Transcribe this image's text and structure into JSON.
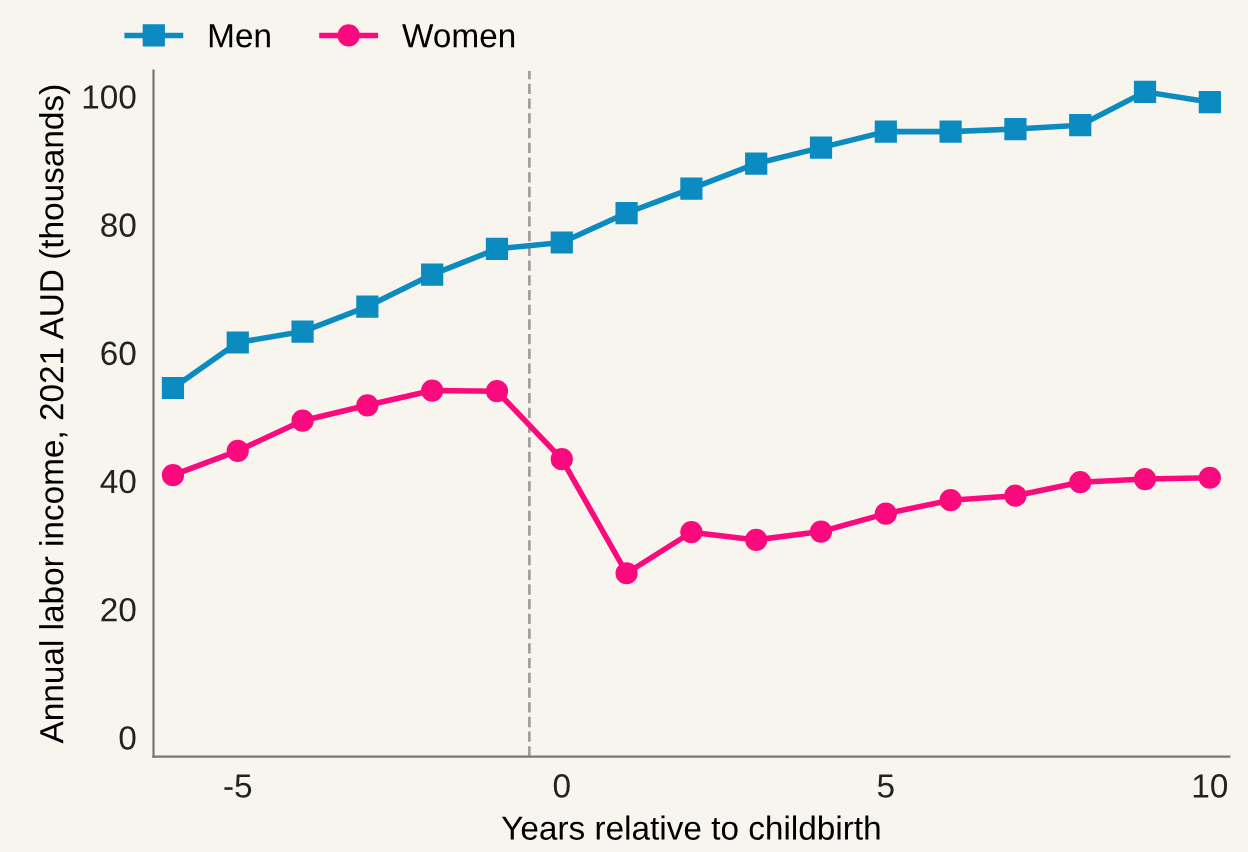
{
  "chart_data": {
    "type": "line",
    "xlabel": "Years relative to childbirth",
    "ylabel": "Annual labor income, 2021 AUD (thousands)",
    "x": [
      -6,
      -5,
      -4,
      -3,
      -2,
      -1,
      0,
      1,
      2,
      3,
      4,
      5,
      6,
      7,
      8,
      9,
      10
    ],
    "series": [
      {
        "name": "Men",
        "color": "#0b8bbf",
        "marker": "square",
        "values": [
          54.5,
          61.6,
          63.3,
          67.2,
          72.2,
          76.2,
          77.2,
          81.8,
          85.6,
          89.5,
          92.0,
          94.5,
          94.5,
          94.9,
          95.5,
          100.7,
          99.1
        ]
      },
      {
        "name": "Women",
        "color": "#fa0a7c",
        "marker": "circle",
        "values": [
          40.9,
          44.7,
          49.4,
          51.8,
          54.1,
          54.0,
          43.4,
          25.6,
          32.0,
          30.8,
          32.1,
          34.9,
          37.0,
          37.7,
          39.8,
          40.3,
          40.5
        ]
      }
    ],
    "xlim": [
      -6.3,
      10.3
    ],
    "ylim": [
      -3,
      104
    ],
    "xticks": [
      -5,
      0,
      5,
      10
    ],
    "yticks": [
      0,
      20,
      40,
      60,
      80,
      100
    ],
    "ref_lines": [
      {
        "axis": "x",
        "value": -0.5,
        "color": "#a0a0a0",
        "line_style": "dashed"
      }
    ],
    "grid": false,
    "legend": "top left",
    "line_style": "solid"
  }
}
